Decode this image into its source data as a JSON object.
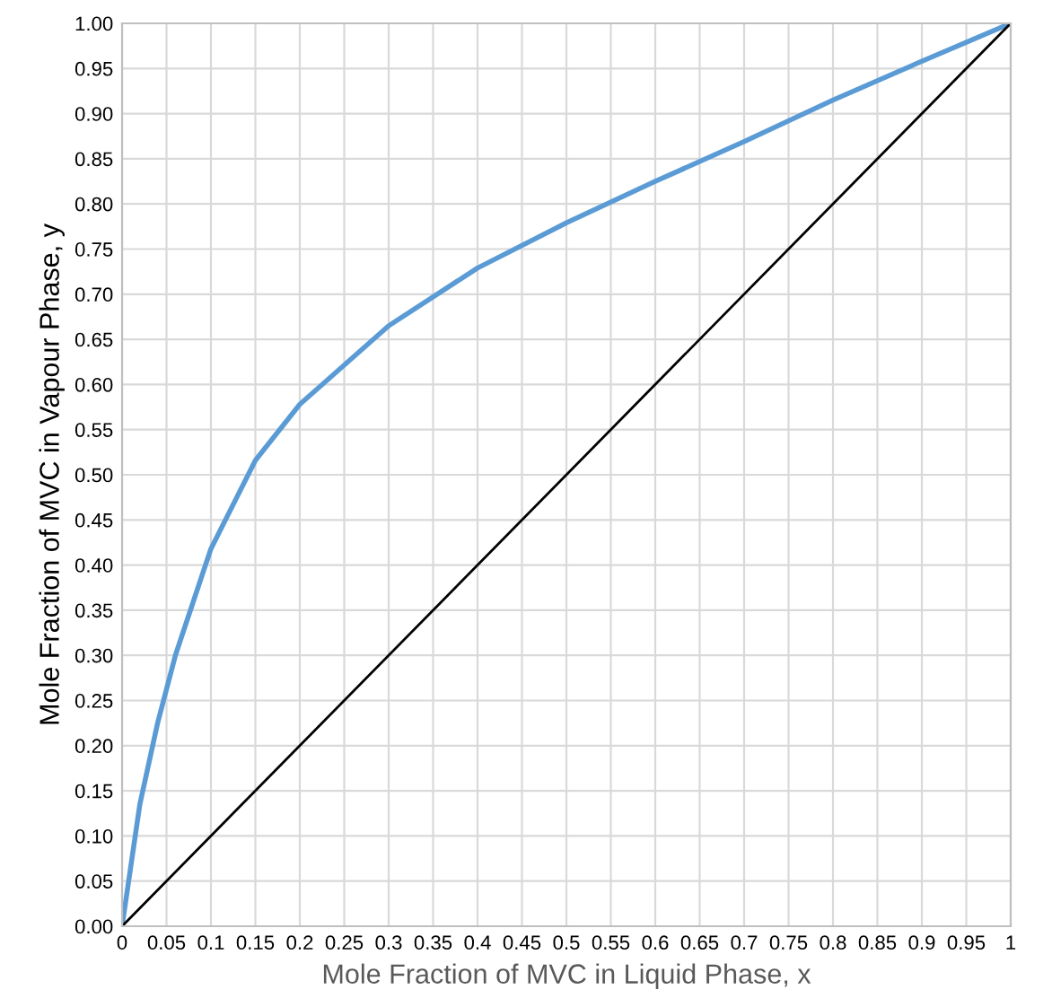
{
  "chart_data": {
    "type": "line",
    "xlabel": "Mole Fraction of MVC in Liquid Phase, x",
    "ylabel": "Mole Fraction of MVC in Vapour Phase, y",
    "series": [
      {
        "color": "#5b9bd5",
        "x": [
          0,
          0.02,
          0.04,
          0.06,
          0.1,
          0.15,
          0.2,
          0.3,
          0.4,
          0.5,
          0.6,
          0.7,
          0.8,
          0.9,
          1
        ],
        "values": [
          0,
          0.135,
          0.225,
          0.3,
          0.418,
          0.516,
          0.578,
          0.665,
          0.729,
          0.779,
          0.825,
          0.869,
          0.915,
          0.958,
          1
        ]
      },
      {
        "color": "#000000",
        "x": [
          0,
          1
        ],
        "values": [
          0,
          1
        ]
      }
    ],
    "xlim": [
      0,
      1
    ],
    "ylim": [
      0,
      1
    ],
    "xticks": [
      0,
      0.05,
      0.1,
      0.15,
      0.2,
      0.25,
      0.3,
      0.35,
      0.4,
      0.45,
      0.5,
      0.55,
      0.6,
      0.65,
      0.7,
      0.75,
      0.8,
      0.85,
      0.9,
      0.95,
      1
    ],
    "yticks": [
      {
        "value": 0,
        "label": "0.00"
      },
      {
        "value": 0.05,
        "label": "0.05"
      },
      {
        "value": 0.1,
        "label": "0.10"
      },
      {
        "value": 0.15,
        "label": "0.15"
      },
      {
        "value": 0.2,
        "label": "0.20"
      },
      {
        "value": 0.25,
        "label": "0.25"
      },
      {
        "value": 0.3,
        "label": "0.30"
      },
      {
        "value": 0.35,
        "label": "0.35"
      },
      {
        "value": 0.4,
        "label": "0.40"
      },
      {
        "value": 0.45,
        "label": "0.45"
      },
      {
        "value": 0.5,
        "label": "0.50"
      },
      {
        "value": 0.55,
        "label": "0.55"
      },
      {
        "value": 0.6,
        "label": "0.60"
      },
      {
        "value": 0.65,
        "label": "0.65"
      },
      {
        "value": 0.7,
        "label": "0.70"
      },
      {
        "value": 0.75,
        "label": "0.75"
      },
      {
        "value": 0.8,
        "label": "0.80"
      },
      {
        "value": 0.85,
        "label": "0.85"
      },
      {
        "value": 0.9,
        "label": "0.90"
      },
      {
        "value": 0.95,
        "label": "0.95"
      },
      {
        "value": 1,
        "label": "1.00"
      }
    ],
    "grid": true
  }
}
